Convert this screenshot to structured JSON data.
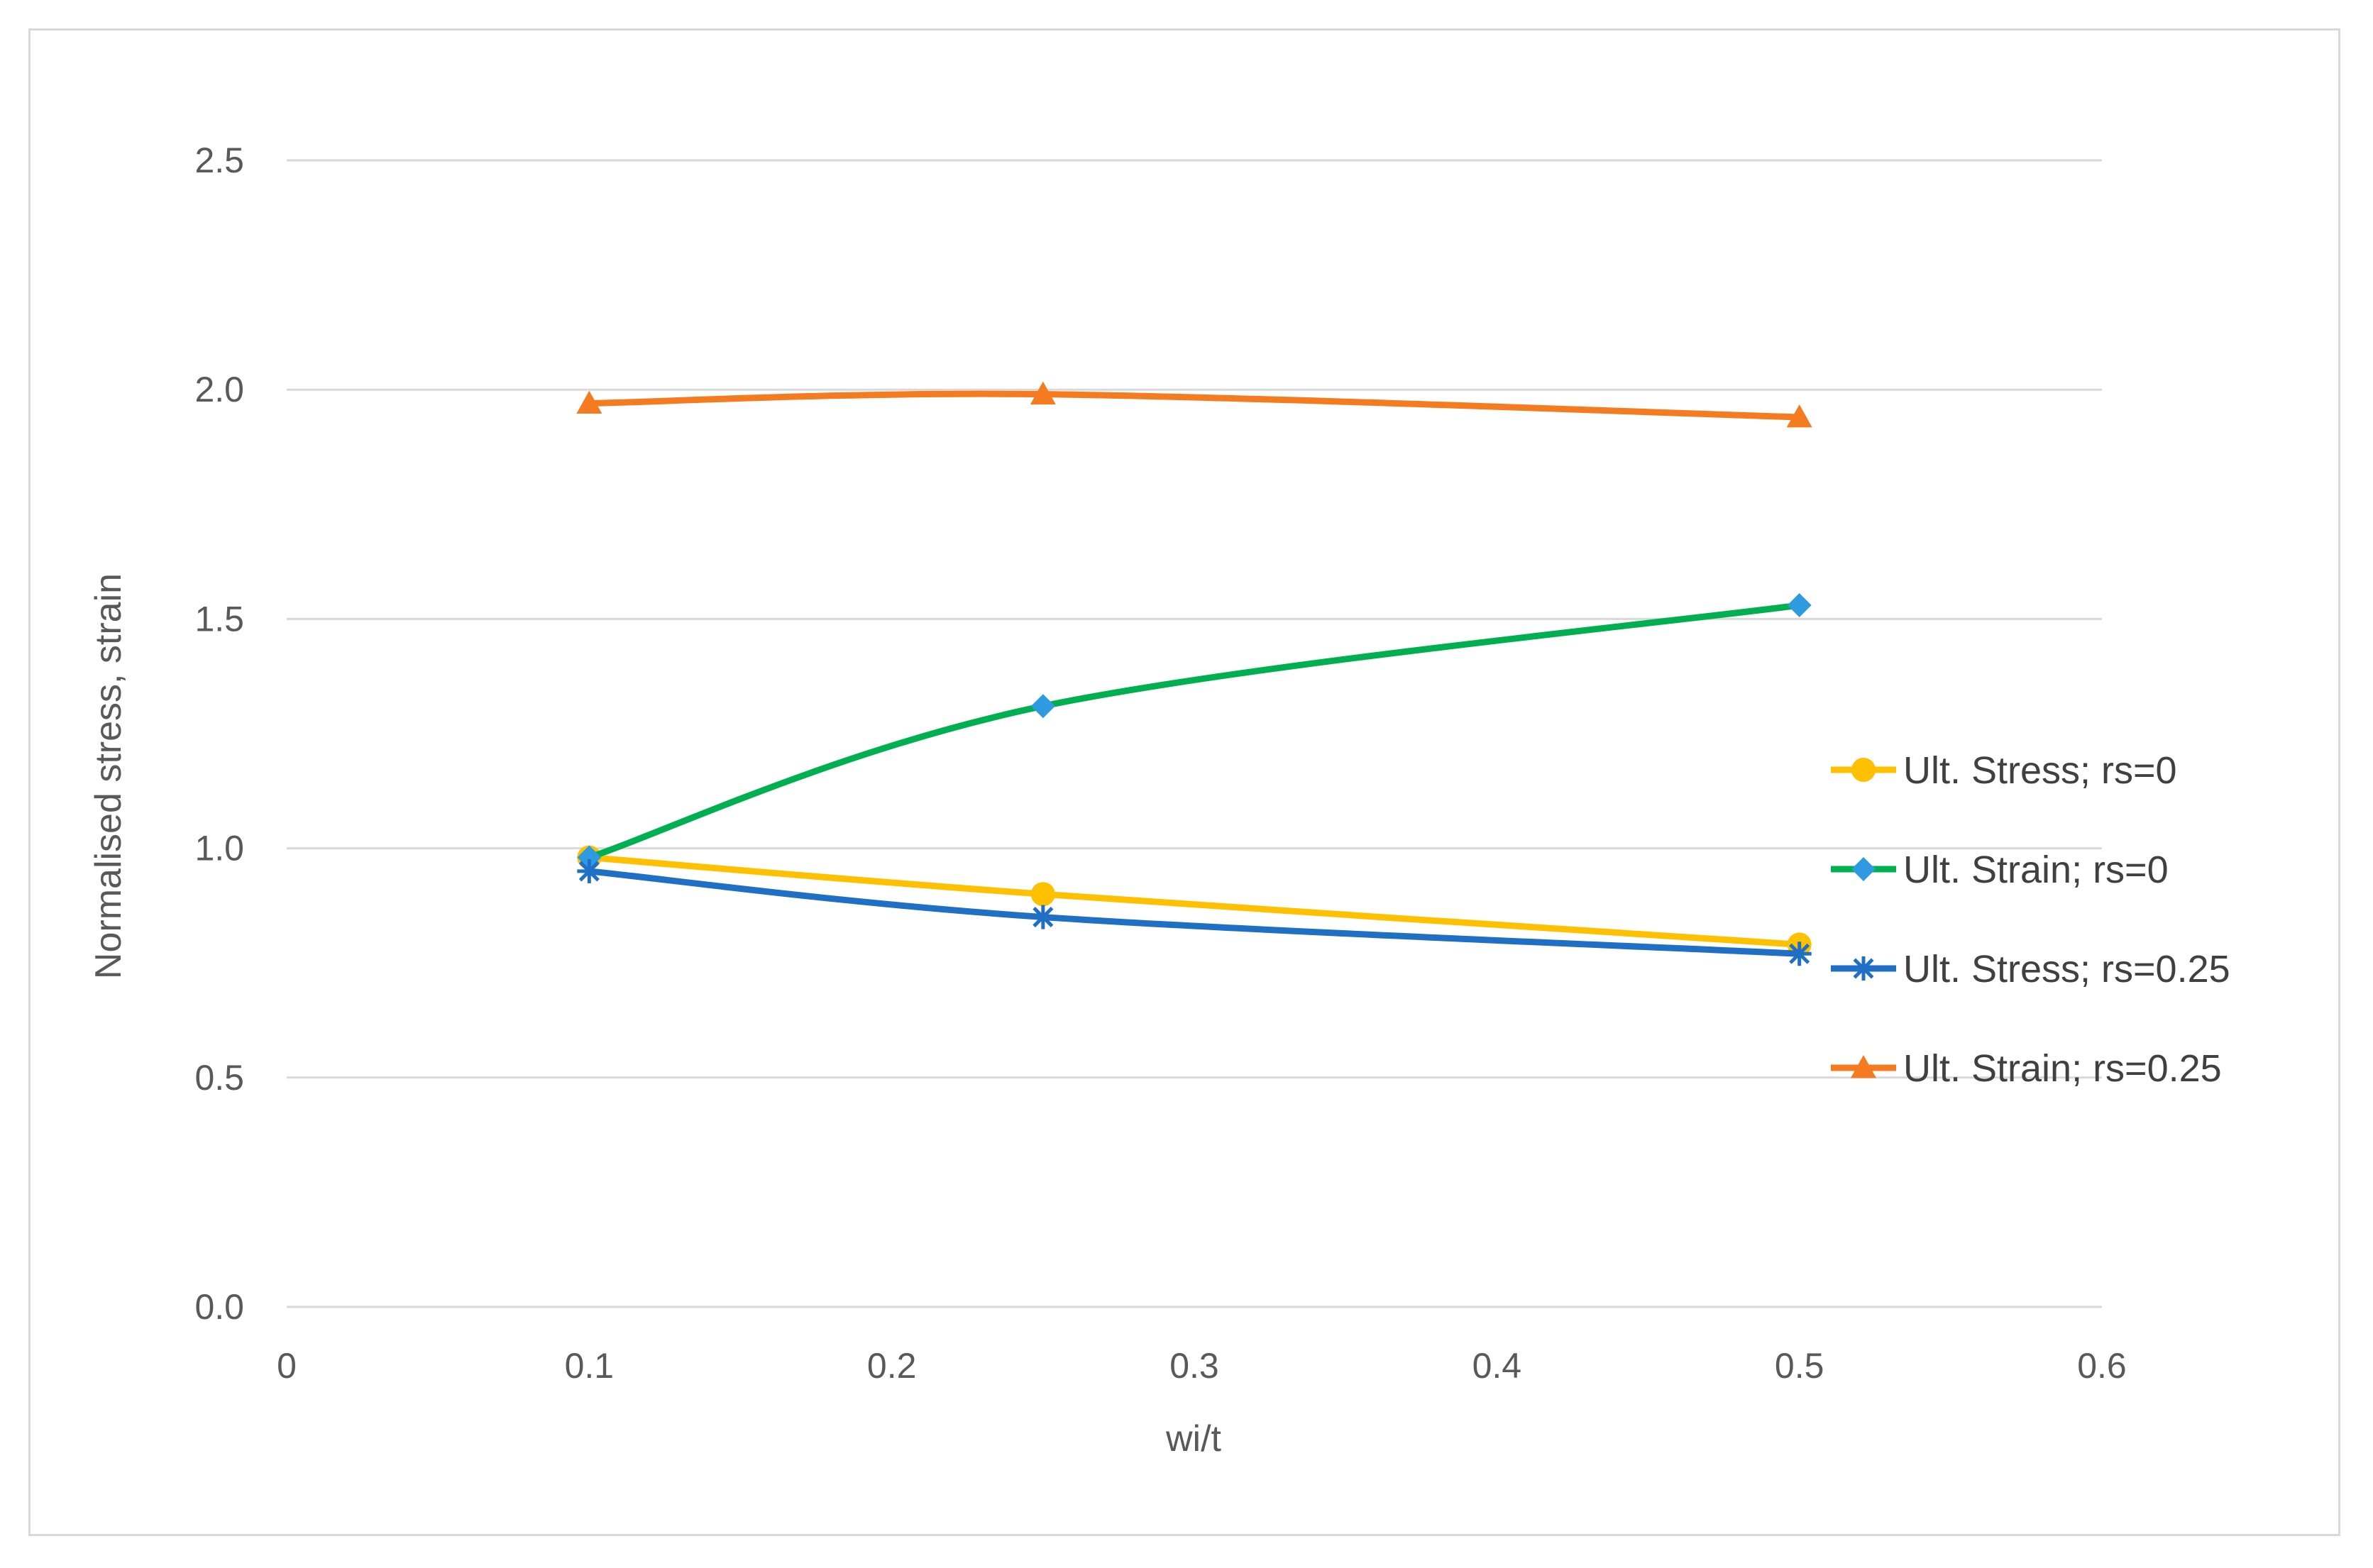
{
  "chart_data": {
    "type": "line",
    "title": "",
    "xlabel": "wi/t",
    "ylabel": "Normalised stress, strain",
    "xlim": [
      0,
      0.6
    ],
    "ylim": [
      0,
      2.5
    ],
    "xticks": [
      "0",
      "0.1",
      "0.2",
      "0.3",
      "0.4",
      "0.5",
      "0.6"
    ],
    "yticks": [
      "0.0",
      "0.5",
      "1.0",
      "1.5",
      "2.0",
      "2.5"
    ],
    "grid": "horizontal",
    "legend_position": "right",
    "series": [
      {
        "name": "Ult. Stress; rs=0",
        "x": [
          0.1,
          0.25,
          0.5
        ],
        "y": [
          0.98,
          0.9,
          0.79
        ],
        "color": "#FFC000",
        "marker": "circle"
      },
      {
        "name": "Ult. Strain; rs=0",
        "x": [
          0.1,
          0.25,
          0.5
        ],
        "y": [
          0.98,
          1.31,
          1.53
        ],
        "color": "#00B050",
        "marker_color": "#2E9BE0",
        "marker": "diamond"
      },
      {
        "name": "Ult. Stress; rs=0.25",
        "x": [
          0.1,
          0.25,
          0.5
        ],
        "y": [
          0.95,
          0.85,
          0.77
        ],
        "color": "#1F6FC5",
        "marker": "star"
      },
      {
        "name": "Ult. Strain; rs=0.25",
        "x": [
          0.1,
          0.25,
          0.5
        ],
        "y": [
          1.97,
          1.99,
          1.94
        ],
        "color": "#F47B20",
        "marker": "triangle"
      }
    ]
  }
}
